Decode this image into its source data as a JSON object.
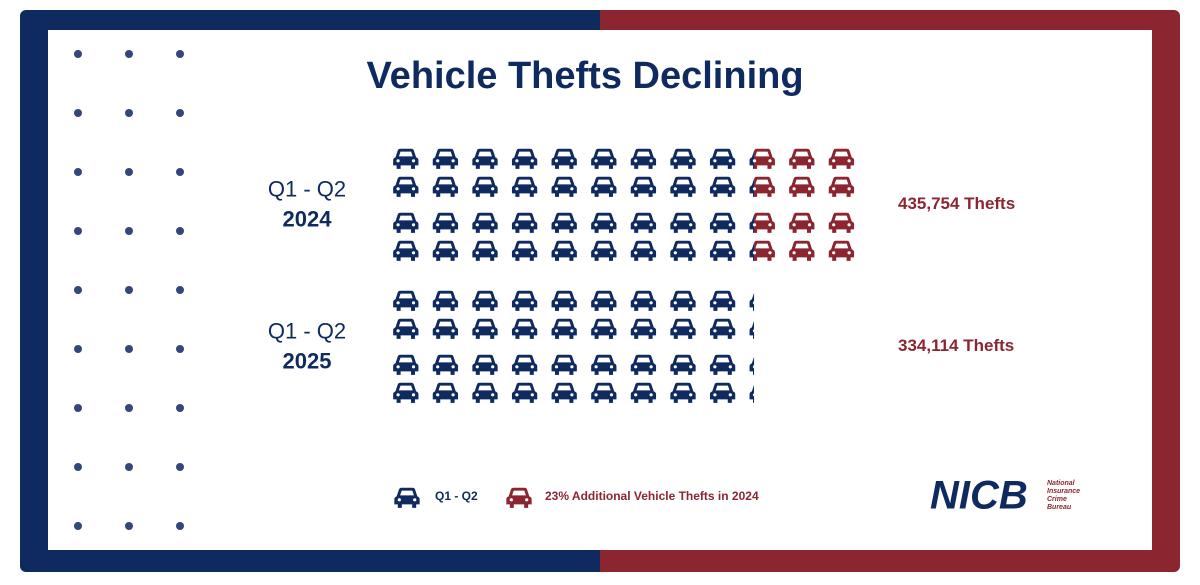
{
  "chart_data": {
    "type": "pictograph",
    "title": "Vehicle Thefts Declining",
    "categories": [
      {
        "period": "Q1 - Q2",
        "year": "2024"
      },
      {
        "period": "Q1 - Q2",
        "year": "2025"
      }
    ],
    "series": [
      {
        "name": "Q1 - Q2",
        "color": "#0f2a5e",
        "values": [
          334114,
          334114
        ]
      },
      {
        "name": "23% Additional Vehicle Thefts in 2024",
        "color": "#8b2631",
        "values": [
          101640,
          null
        ]
      }
    ],
    "totals": [
      435754,
      334114
    ],
    "total_labels": [
      "435,754 Thefts",
      "334,114 Thefts"
    ]
  },
  "logo": {
    "name": "NICB",
    "lines": [
      "National",
      "Insurance",
      "Crime",
      "Bureau"
    ]
  }
}
